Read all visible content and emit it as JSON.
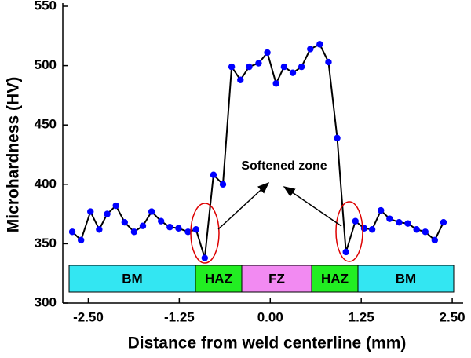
{
  "chart_data": {
    "type": "line",
    "xlabel": "Distance from  weld centerline (mm)",
    "ylabel": "Microhardness (HV)",
    "xlim": [
      -2.85,
      2.65
    ],
    "ylim": [
      300,
      550
    ],
    "xticks": [
      {
        "value": -2.5,
        "label": "-2.50"
      },
      {
        "value": -1.25,
        "label": "-1.25"
      },
      {
        "value": 0,
        "label": "0.00"
      },
      {
        "value": 1.25,
        "label": "1.25"
      },
      {
        "value": 2.5,
        "label": "2.50"
      }
    ],
    "yticks": [
      300,
      350,
      400,
      450,
      500,
      550
    ],
    "series": [
      {
        "color": "#0000ff",
        "x": [
          -2.72,
          -2.6,
          -2.47,
          -2.35,
          -2.24,
          -2.12,
          -2.0,
          -1.87,
          -1.75,
          -1.63,
          -1.5,
          -1.38,
          -1.26,
          -1.13,
          -1.02,
          -0.9,
          -0.78,
          -0.65,
          -0.53,
          -0.41,
          -0.29,
          -0.16,
          -0.04,
          0.08,
          0.19,
          0.31,
          0.43,
          0.55,
          0.68,
          0.8,
          0.92,
          1.04,
          1.17,
          1.29,
          1.4,
          1.52,
          1.64,
          1.77,
          1.89,
          2.01,
          2.13,
          2.26,
          2.38
        ],
        "values": [
          360,
          353,
          377,
          362,
          375,
          382,
          368,
          360,
          365,
          377,
          369,
          364,
          363,
          360,
          362,
          338,
          408,
          400,
          499,
          488,
          499,
          502,
          511,
          485,
          499,
          494,
          499,
          514,
          518,
          503,
          439,
          343,
          369,
          363,
          362,
          378,
          371,
          368,
          367,
          362,
          360,
          353,
          368
        ]
      }
    ],
    "annotations": [
      "Softened zone"
    ],
    "zones": [
      {
        "label": "BM",
        "color": "#33e6f2"
      },
      {
        "label": "HAZ",
        "color": "#22ee22"
      },
      {
        "label": "FZ",
        "color": "#f28af2"
      },
      {
        "label": "HAZ",
        "color": "#22ee22"
      },
      {
        "label": "BM",
        "color": "#33e6f2"
      }
    ]
  }
}
